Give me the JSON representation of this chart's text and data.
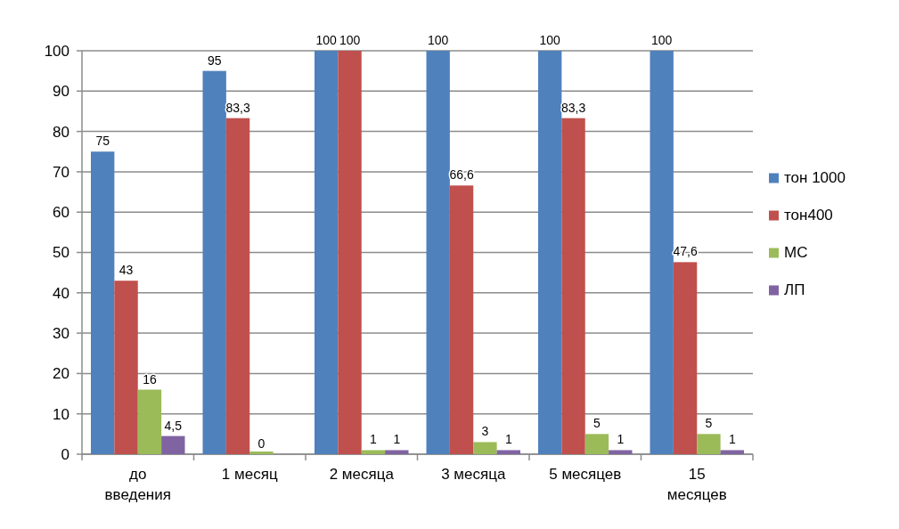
{
  "chart_data": {
    "type": "bar",
    "categories": [
      "до введения",
      "1 месяц",
      "2 месяца",
      "3 месяца",
      "5 месяцев",
      "15 месяцев"
    ],
    "series": [
      {
        "name": "тон 1000",
        "color": "#4f81bd",
        "values": [
          75,
          95,
          100,
          100,
          100,
          100
        ],
        "value_labels": [
          "75",
          "95",
          "100",
          "100",
          "100",
          "100"
        ]
      },
      {
        "name": "тон400",
        "color": "#c0504d",
        "values": [
          43,
          83.3,
          100,
          66.6,
          83.3,
          47.6
        ],
        "value_labels": [
          "43",
          "83,3",
          "100",
          "66,6",
          "83,3",
          "47,6"
        ]
      },
      {
        "name": "МС",
        "color": "#9bbb59",
        "values": [
          16,
          0,
          1,
          3,
          5,
          5
        ],
        "value_labels": [
          "16",
          "0",
          "1",
          "3",
          "5",
          "5"
        ]
      },
      {
        "name": "ЛП",
        "color": "#8064a2",
        "values": [
          4.5,
          null,
          1,
          1,
          1,
          1
        ],
        "value_labels": [
          "4,5",
          null,
          "1",
          "1",
          "1",
          "1"
        ]
      }
    ],
    "ylim": [
      0,
      100
    ],
    "yticks": [
      0,
      10,
      20,
      30,
      40,
      50,
      60,
      70,
      80,
      90,
      100
    ],
    "grid": "y",
    "legend": "right"
  }
}
